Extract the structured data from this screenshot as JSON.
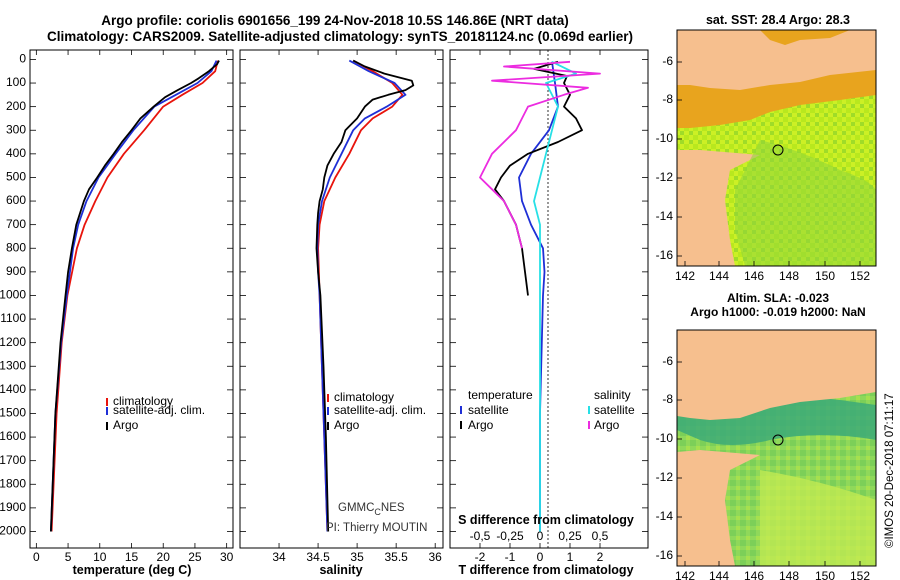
{
  "title": {
    "line1": "Argo profile: coriolis 6901656_199 24-Nov-2018 10.5S 146.86E (NRT data)",
    "line2": "Climatology: CARS2009. Satellite-adjusted climatology: synTS_20181124.nc (0.069d earlier)"
  },
  "colors": {
    "climatology": "#e8140c",
    "satellite": "#1f2fd6",
    "argo": "#000000",
    "sal_sat": "#27e0e6",
    "sal_argo": "#ec2ce0",
    "land": "#f5b98a"
  },
  "chart_data": [
    {
      "type": "line",
      "name": "temperature",
      "xlabel": "temperature (deg C)",
      "ylabel": "depth",
      "xlim": [
        -1,
        31
      ],
      "ylim": [
        0,
        2050
      ],
      "xticks": [
        "0",
        "5",
        "10",
        "15",
        "20",
        "25",
        "30"
      ],
      "yticks": [
        "0",
        "100",
        "200",
        "300",
        "400",
        "500",
        "600",
        "700",
        "800",
        "900",
        "1000",
        "1100",
        "1200",
        "1300",
        "1400",
        "1500",
        "1600",
        "1700",
        "1800",
        "1900",
        "2000"
      ],
      "legend": [
        "climatology",
        "satellite-adj. clim.",
        "Argo"
      ],
      "series": [
        {
          "name": "climatology",
          "depth": [
            5,
            50,
            100,
            150,
            200,
            300,
            400,
            500,
            600,
            700,
            800,
            1000,
            1200,
            1500,
            2000
          ],
          "values": [
            28.6,
            28.2,
            26.2,
            23.0,
            20.0,
            17.0,
            13.8,
            11.2,
            9.3,
            7.6,
            6.4,
            4.9,
            4.0,
            3.2,
            2.4
          ]
        },
        {
          "name": "satellite-adj. clim.",
          "depth": [
            5,
            50,
            100,
            150,
            200,
            300,
            400,
            500,
            600,
            700,
            800,
            1000,
            1200,
            1500,
            2000
          ],
          "values": [
            28.4,
            27.6,
            25.4,
            22.0,
            18.6,
            15.3,
            12.5,
            9.8,
            7.9,
            6.6,
            5.8,
            4.8,
            3.9,
            3.0,
            2.3
          ]
        },
        {
          "name": "Argo",
          "depth": [
            5,
            20,
            50,
            80,
            100,
            130,
            160,
            200,
            250,
            300,
            350,
            400,
            450,
            500,
            550,
            600,
            700,
            800,
            900,
            1000,
            1200,
            1500,
            2000
          ],
          "values": [
            28.8,
            28.5,
            27.2,
            25.6,
            24.4,
            22.3,
            20.3,
            18.5,
            16.4,
            15.0,
            13.5,
            12.2,
            10.8,
            9.6,
            8.3,
            7.5,
            6.3,
            5.6,
            5.0,
            4.6,
            3.8,
            3.0,
            2.3
          ]
        }
      ]
    },
    {
      "type": "line",
      "name": "salinity",
      "xlabel": "salinity",
      "xlim": [
        33.5,
        36.1
      ],
      "xticks": [
        "34",
        "34.5",
        "35",
        "35.5",
        "36"
      ],
      "legend": [
        "climatology",
        "satellite-adj. clim.",
        "Argo"
      ],
      "series": [
        {
          "name": "climatology",
          "depth": [
            5,
            50,
            100,
            150,
            200,
            250,
            300,
            400,
            500,
            600,
            700,
            800,
            900,
            1000,
            1500,
            2000
          ],
          "values": [
            34.95,
            35.2,
            35.45,
            35.58,
            35.45,
            35.2,
            35.05,
            34.9,
            34.72,
            34.58,
            34.52,
            34.5,
            34.51,
            34.52,
            34.57,
            34.62
          ]
        },
        {
          "name": "satellite-adj. clim.",
          "depth": [
            5,
            50,
            100,
            150,
            200,
            250,
            300,
            400,
            500,
            600,
            700,
            800,
            900,
            1000,
            1500,
            2000
          ],
          "values": [
            34.9,
            35.15,
            35.48,
            35.62,
            35.38,
            35.1,
            34.95,
            34.8,
            34.65,
            34.55,
            34.5,
            34.49,
            34.5,
            34.52,
            34.57,
            34.62
          ]
        },
        {
          "name": "Argo",
          "depth": [
            5,
            30,
            60,
            90,
            110,
            130,
            150,
            170,
            200,
            250,
            300,
            350,
            400,
            450,
            500,
            550,
            600,
            650,
            700,
            800,
            900,
            1000,
            1300,
            1600,
            2000
          ],
          "values": [
            34.95,
            35.1,
            35.35,
            35.7,
            35.72,
            35.62,
            35.4,
            35.2,
            35.1,
            35.0,
            34.85,
            34.8,
            34.7,
            34.62,
            34.58,
            34.56,
            34.52,
            34.5,
            34.49,
            34.48,
            34.5,
            34.53,
            34.57,
            34.6,
            34.63
          ]
        }
      ]
    },
    {
      "type": "line",
      "name": "difference",
      "xlabel": "T difference from climatology",
      "x2label": "S difference from climatology",
      "xlim": [
        -3,
        3.6
      ],
      "xticks": [
        "-2",
        "-1",
        "0",
        "1",
        "2"
      ],
      "x2ticks": [
        "-0.5",
        "-0.25",
        "0",
        "0.25",
        "0.5"
      ],
      "legend_left_title": "temperature",
      "legend_right_title": "salinity",
      "legend_left": [
        "satellite",
        "Argo"
      ],
      "legend_right": [
        "satellite",
        "Argo"
      ],
      "series": [
        {
          "name": "T satellite",
          "depth": [
            10,
            100,
            200,
            300,
            400,
            500,
            600,
            700,
            800,
            900,
            1000,
            1500,
            2000
          ],
          "values": [
            0.4,
            0.5,
            0.6,
            0.3,
            -0.3,
            -0.7,
            -0.6,
            -0.3,
            0.1,
            0.15,
            0.1,
            0.0,
            0.0
          ]
        },
        {
          "name": "T Argo",
          "depth": [
            10,
            40,
            70,
            100,
            150,
            200,
            250,
            300,
            350,
            400,
            450,
            500,
            550,
            600,
            700,
            800,
            900,
            1000
          ],
          "values": [
            0.6,
            -0.2,
            0.9,
            0.8,
            1.0,
            0.8,
            1.2,
            1.4,
            0.6,
            -0.4,
            -1.0,
            -1.3,
            -1.5,
            -1.2,
            -0.8,
            -0.6,
            -0.5,
            -0.4
          ]
        },
        {
          "name": "S satellite",
          "depth": [
            10,
            60,
            100,
            200,
            300,
            400,
            500,
            600,
            700,
            800,
            1000,
            1500,
            2000
          ],
          "values": [
            0.1,
            0.3,
            0.05,
            0.15,
            0.1,
            0.05,
            0.0,
            -0.05,
            0.0,
            0.0,
            0.0,
            0.0,
            0.0
          ]
        },
        {
          "name": "S Argo",
          "depth": [
            10,
            30,
            60,
            90,
            120,
            150,
            200,
            300,
            400,
            500,
            550,
            600,
            700,
            800
          ],
          "values": [
            0.25,
            -0.3,
            0.5,
            -0.4,
            0.4,
            0.2,
            -0.1,
            -0.2,
            -0.4,
            -0.5,
            -0.4,
            -0.3,
            -0.2,
            -0.15
          ]
        }
      ]
    }
  ],
  "maps": {
    "sst": {
      "title": "sat. SST: 28.4 Argo: 28.3"
    },
    "sla": {
      "title1": "Altim. SLA: -0.023",
      "title2": "Argo h1000: -0.019 h2000: NaN"
    },
    "xticks": [
      "142",
      "144",
      "146",
      "148",
      "150",
      "152"
    ],
    "yticks": [
      "-6",
      "-8",
      "-10",
      "-12",
      "-14",
      "-16"
    ]
  },
  "credits": {
    "gmmc": "GMMC",
    "gmmc_sub": "C",
    "gmmc_end": "NES",
    "pi": "PI: Thierry MOUTIN",
    "imos": "©IMOS 20-Dec-2018 07:11:17"
  }
}
